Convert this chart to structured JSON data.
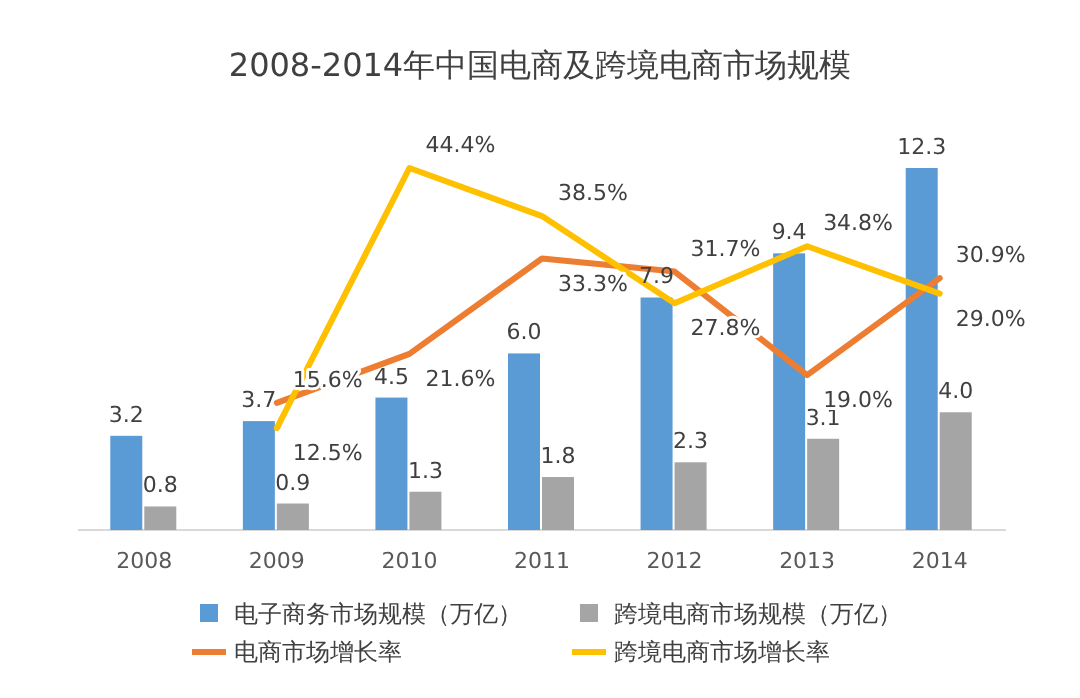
{
  "chart_data": {
    "type": "bar",
    "title": "2008-2014年中国电商及跨境电商市场规模",
    "categories": [
      "2008",
      "2009",
      "2010",
      "2011",
      "2012",
      "2013",
      "2014"
    ],
    "legend": "bottom",
    "series": [
      {
        "name": "电子商务市场规模（万亿）",
        "color": "#5b9bd5",
        "values": [
          3.2,
          3.7,
          4.5,
          6.0,
          7.9,
          9.4,
          12.3
        ],
        "value_labels": [
          "3.2",
          "3.7",
          "4.5",
          "6.0",
          "7.9",
          "9.4",
          "12.3"
        ]
      },
      {
        "name": "跨境电商市场规模（万亿）",
        "color": "#a5a5a5",
        "values": [
          0.8,
          0.9,
          1.3,
          1.8,
          2.3,
          3.1,
          4.0
        ],
        "value_labels": [
          "0.8",
          "0.9",
          "1.3",
          "1.8",
          "2.3",
          "3.1",
          "4.0"
        ]
      },
      {
        "name": "电商市场增长率",
        "type": "line",
        "axis": "y2",
        "color": "#ed7d31",
        "values": [
          null,
          15.6,
          21.6,
          33.3,
          31.7,
          19.0,
          30.9
        ],
        "value_labels": [
          null,
          "15.6%",
          "21.6%",
          "33.3%",
          "31.7%",
          "19.0%",
          "30.9%"
        ]
      },
      {
        "name": "跨境电商市场增长率",
        "type": "line",
        "axis": "y2",
        "color": "#ffc000",
        "values": [
          null,
          12.5,
          44.4,
          38.5,
          27.8,
          34.8,
          29.0
        ],
        "value_labels": [
          null,
          "12.5%",
          "44.4%",
          "38.5%",
          "27.8%",
          "34.8%",
          "29.0%"
        ]
      }
    ]
  }
}
